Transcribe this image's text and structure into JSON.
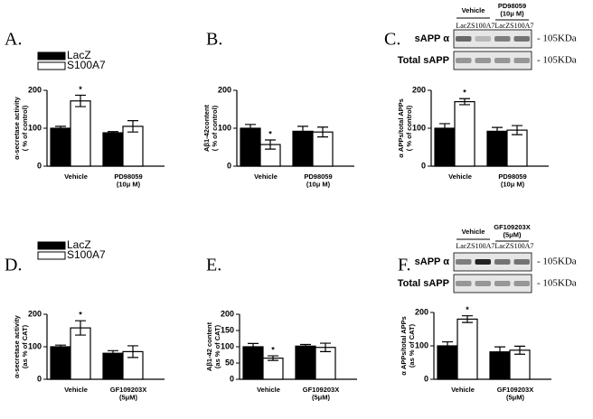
{
  "chart_data": [
    {
      "type": "bar",
      "panel": "A.",
      "ylabel": [
        "α-secretase activity",
        "( % of control)"
      ],
      "categories": [
        "Vehicle",
        "PD98059\n(10μ M)"
      ],
      "series": [
        {
          "name": "LacZ",
          "color": "#000000",
          "values": [
            100,
            88
          ],
          "errors": [
            5,
            3
          ]
        },
        {
          "name": "S100A7",
          "color": "#ffffff",
          "values": [
            172,
            105
          ],
          "errors": [
            15,
            15
          ]
        }
      ],
      "ylim": [
        0,
        200
      ],
      "yticks": [
        0,
        100,
        200
      ],
      "annotation": "*"
    },
    {
      "type": "bar",
      "panel": "B.",
      "ylabel": [
        "Aβ1-42content",
        "( % of control)"
      ],
      "categories": [
        "Vehicle",
        "PD98059\n(10μ M)"
      ],
      "series": [
        {
          "color": "#000000",
          "values": [
            100,
            92
          ],
          "errors": [
            10,
            13
          ]
        },
        {
          "color": "#ffffff",
          "values": [
            57,
            90
          ],
          "errors": [
            12,
            13
          ]
        }
      ],
      "ylim": [
        0,
        200
      ],
      "yticks": [
        0,
        100,
        200
      ],
      "annotation": "*"
    },
    {
      "type": "bar",
      "panel": "C.",
      "ylabel": [
        "α APPs/total APPs",
        "( % of control)"
      ],
      "categories": [
        "Vehicle",
        "PD98059\n(10μ M)"
      ],
      "series": [
        {
          "color": "#000000",
          "values": [
            100,
            92
          ],
          "errors": [
            12,
            10
          ]
        },
        {
          "color": "#ffffff",
          "values": [
            170,
            95
          ],
          "errors": [
            8,
            12
          ]
        }
      ],
      "ylim": [
        0,
        200
      ],
      "yticks": [
        0,
        100,
        200
      ],
      "annotation": "*"
    },
    {
      "type": "bar",
      "panel": "D.",
      "ylabel": [
        "α-secretase activity",
        "(as % of CAT)"
      ],
      "categories": [
        "Vehicle",
        "GF109203X\n(5μM)"
      ],
      "series": [
        {
          "name": "LacZ",
          "color": "#000000",
          "values": [
            100,
            80
          ],
          "errors": [
            5,
            8
          ]
        },
        {
          "name": "S100A7",
          "color": "#ffffff",
          "values": [
            158,
            85
          ],
          "errors": [
            22,
            18
          ]
        }
      ],
      "ylim": [
        0,
        200
      ],
      "yticks": [
        0,
        100,
        200
      ],
      "annotation": "*"
    },
    {
      "type": "bar",
      "panel": "E.",
      "ylabel": [
        "Aβ1-42 content",
        "(as % of CAT)"
      ],
      "categories": [
        "Vehicle",
        "GF109203X\n(5μM)"
      ],
      "series": [
        {
          "color": "#000000",
          "values": [
            100,
            102
          ],
          "errors": [
            10,
            5
          ]
        },
        {
          "color": "#ffffff",
          "values": [
            65,
            98
          ],
          "errors": [
            7,
            13
          ]
        }
      ],
      "ylim": [
        0,
        200
      ],
      "yticks": [
        0,
        50,
        100,
        150,
        200
      ],
      "annotation": "*"
    },
    {
      "type": "bar",
      "panel": "F.",
      "ylabel": [
        "α APPs/total APPs",
        "(as % of CAT)"
      ],
      "categories": [
        "Vehicle",
        "GF109203X\n(5μM)"
      ],
      "series": [
        {
          "color": "#000000",
          "values": [
            100,
            82
          ],
          "errors": [
            12,
            15
          ]
        },
        {
          "color": "#ffffff",
          "values": [
            180,
            87
          ],
          "errors": [
            10,
            12
          ]
        }
      ],
      "ylim": [
        0,
        200
      ],
      "yticks": [
        0,
        100,
        200
      ],
      "annotation": "*"
    }
  ],
  "blots": [
    {
      "groups": [
        "Vehicle",
        "PD98059\n(10μ M)"
      ],
      "lanes": [
        "LacZ",
        "S100A7",
        "LacZ",
        "S100A7"
      ],
      "rows": [
        "sAPP α",
        "Total sAPP"
      ],
      "size": "- 105KDa"
    },
    {
      "groups": [
        "Vehicle",
        "GF109203X\n(5μM)"
      ],
      "lanes": [
        "LacZ",
        "S100A7",
        "LacZ",
        "S100A7"
      ],
      "rows": [
        "sAPP α",
        "Total sAPP"
      ],
      "size": "- 105KDa"
    }
  ]
}
